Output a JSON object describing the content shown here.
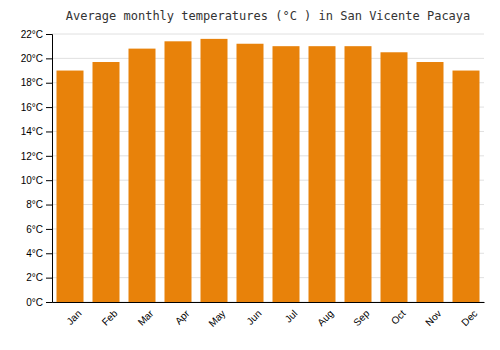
{
  "chart_data": {
    "type": "bar",
    "title": "Average monthly temperatures (°C ) in San Vicente Pacaya",
    "categories": [
      "Jan",
      "Feb",
      "Mar",
      "Apr",
      "May",
      "Jun",
      "Jul",
      "Aug",
      "Sep",
      "Oct",
      "Nov",
      "Dec"
    ],
    "values": [
      19.0,
      19.7,
      20.8,
      21.4,
      21.6,
      21.2,
      21.0,
      21.0,
      21.0,
      20.5,
      19.7,
      19.0
    ],
    "color": "#E8820A",
    "ylim": [
      0,
      22
    ],
    "yticks": [
      {
        "value": 0,
        "label": "0°C"
      },
      {
        "value": 2,
        "label": "2°C"
      },
      {
        "value": 4,
        "label": "4°C"
      },
      {
        "value": 6,
        "label": "6°C"
      },
      {
        "value": 8,
        "label": "8°C"
      },
      {
        "value": 10,
        "label": "10°C"
      },
      {
        "value": 12,
        "label": "12°C"
      },
      {
        "value": 14,
        "label": "14°C"
      },
      {
        "value": 16,
        "label": "16°C"
      },
      {
        "value": 18,
        "label": "18°C"
      },
      {
        "value": 20,
        "label": "20°C"
      },
      {
        "value": 22,
        "label": "22°C"
      }
    ],
    "grid": true
  }
}
